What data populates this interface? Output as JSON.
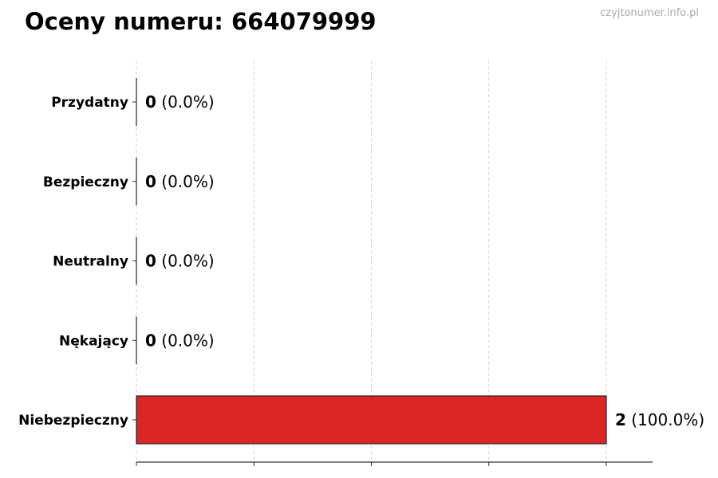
{
  "chart_data": {
    "type": "bar",
    "orientation": "horizontal",
    "title": "Oceny numeru: 664079999",
    "watermark": "czyjtonumer.info.pl",
    "categories": [
      "Przydatny",
      "Bezpieczny",
      "Neutralny",
      "Nękający",
      "Niebezpieczny"
    ],
    "values": [
      0,
      0,
      0,
      0,
      2
    ],
    "value_labels": [
      "0",
      "0",
      "0",
      "0",
      "2"
    ],
    "percent_labels": [
      "(0.0%)",
      "(0.0%)",
      "(0.0%)",
      "(0.0%)",
      "(100.0%)"
    ],
    "colors": [
      "#4caf50",
      "#8bc34a",
      "#9e9e9e",
      "#ff9800",
      "#dc2626"
    ],
    "xlim": [
      0,
      2.2
    ],
    "xticks": [
      0,
      0.5,
      1,
      1.5,
      2
    ],
    "xtick_labels_shown": false,
    "grid": "x-dashed",
    "xlabel": "",
    "ylabel": ""
  }
}
